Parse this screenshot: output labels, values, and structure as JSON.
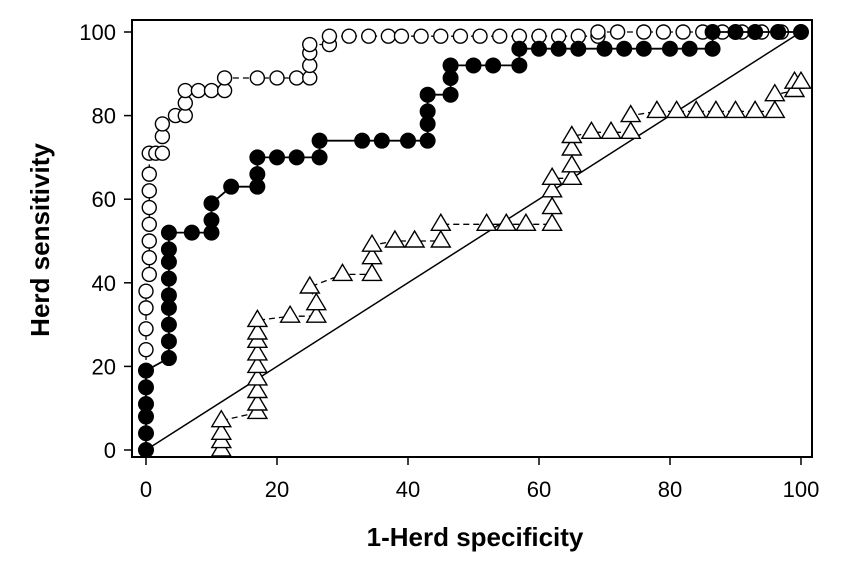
{
  "chart_data": {
    "type": "scatter",
    "title": "",
    "xlabel": "1-Herd specificity",
    "ylabel": "Herd sensitivity",
    "xlim": [
      0,
      100
    ],
    "ylim": [
      0,
      100
    ],
    "xticks": [
      0,
      20,
      40,
      60,
      80,
      100
    ],
    "yticks": [
      0,
      20,
      40,
      60,
      80,
      100
    ],
    "grid": false,
    "reference_line": {
      "x": [
        0,
        100
      ],
      "y": [
        0,
        100
      ]
    },
    "series": [
      {
        "marker": "open-circle",
        "line": "dashed",
        "points": [
          [
            0,
            0
          ],
          [
            0,
            19
          ],
          [
            0,
            24
          ],
          [
            0,
            29
          ],
          [
            0,
            34
          ],
          [
            0,
            38
          ],
          [
            0.5,
            42
          ],
          [
            0.5,
            46
          ],
          [
            0.5,
            50
          ],
          [
            0.5,
            54
          ],
          [
            0.5,
            58
          ],
          [
            0.5,
            62
          ],
          [
            0.5,
            66
          ],
          [
            0.5,
            71
          ],
          [
            1.5,
            71
          ],
          [
            2.5,
            71
          ],
          [
            2.5,
            75
          ],
          [
            2.5,
            78
          ],
          [
            4.5,
            80
          ],
          [
            6,
            80
          ],
          [
            6,
            83
          ],
          [
            6,
            86
          ],
          [
            8,
            86
          ],
          [
            10,
            86
          ],
          [
            12,
            86
          ],
          [
            12,
            89
          ],
          [
            17,
            89
          ],
          [
            20,
            89
          ],
          [
            23,
            89
          ],
          [
            25,
            89
          ],
          [
            25,
            92
          ],
          [
            25,
            95
          ],
          [
            25,
            97
          ],
          [
            28,
            97
          ],
          [
            28,
            99
          ],
          [
            31,
            99
          ],
          [
            34,
            99
          ],
          [
            37,
            99
          ],
          [
            39,
            99
          ],
          [
            42,
            99
          ],
          [
            45,
            99
          ],
          [
            48,
            99
          ],
          [
            51,
            99
          ],
          [
            54,
            99
          ],
          [
            57,
            99
          ],
          [
            60,
            99
          ],
          [
            63,
            99
          ],
          [
            66,
            99
          ],
          [
            69,
            99
          ],
          [
            69,
            100
          ],
          [
            72,
            100
          ],
          [
            76,
            100
          ],
          [
            79,
            100
          ],
          [
            82,
            100
          ],
          [
            85,
            100
          ],
          [
            88,
            100
          ],
          [
            91,
            100
          ],
          [
            94,
            100
          ],
          [
            97,
            100
          ],
          [
            100,
            100
          ]
        ]
      },
      {
        "marker": "filled-circle",
        "line": "solid",
        "points": [
          [
            0,
            0
          ],
          [
            0,
            4
          ],
          [
            0,
            8
          ],
          [
            0,
            11
          ],
          [
            0,
            15
          ],
          [
            0,
            19
          ],
          [
            3.5,
            22
          ],
          [
            3.5,
            26
          ],
          [
            3.5,
            30
          ],
          [
            3.5,
            34
          ],
          [
            3.5,
            37
          ],
          [
            3.5,
            41
          ],
          [
            3.5,
            45
          ],
          [
            3.5,
            48
          ],
          [
            3.5,
            52
          ],
          [
            7,
            52
          ],
          [
            10,
            52
          ],
          [
            10,
            55
          ],
          [
            10,
            59
          ],
          [
            13,
            63
          ],
          [
            17,
            63
          ],
          [
            17,
            66
          ],
          [
            17,
            70
          ],
          [
            20,
            70
          ],
          [
            23,
            70
          ],
          [
            26.5,
            70
          ],
          [
            26.5,
            74
          ],
          [
            33,
            74
          ],
          [
            36,
            74
          ],
          [
            40,
            74
          ],
          [
            43,
            74
          ],
          [
            43,
            78
          ],
          [
            43,
            81
          ],
          [
            43,
            85
          ],
          [
            46.5,
            85
          ],
          [
            46.5,
            89
          ],
          [
            46.5,
            92
          ],
          [
            50,
            92
          ],
          [
            53,
            92
          ],
          [
            57,
            92
          ],
          [
            57,
            96
          ],
          [
            60,
            96
          ],
          [
            63,
            96
          ],
          [
            66,
            96
          ],
          [
            70,
            96
          ],
          [
            73,
            96
          ],
          [
            76,
            96
          ],
          [
            80,
            96
          ],
          [
            83,
            96
          ],
          [
            86.5,
            96
          ],
          [
            86.5,
            100
          ],
          [
            90,
            100
          ],
          [
            93,
            100
          ],
          [
            96.5,
            100
          ],
          [
            100,
            100
          ]
        ]
      },
      {
        "marker": "open-triangle",
        "line": "dashed",
        "points": [
          [
            11.5,
            0
          ],
          [
            11.5,
            2
          ],
          [
            11.5,
            4
          ],
          [
            11.5,
            7
          ],
          [
            17,
            9
          ],
          [
            17,
            11
          ],
          [
            17,
            14
          ],
          [
            17,
            17
          ],
          [
            17,
            20
          ],
          [
            17,
            23
          ],
          [
            17,
            26
          ],
          [
            17,
            28
          ],
          [
            17,
            31
          ],
          [
            22,
            32
          ],
          [
            26,
            32
          ],
          [
            26,
            35
          ],
          [
            25,
            39
          ],
          [
            30,
            42
          ],
          [
            34.5,
            42
          ],
          [
            34.5,
            46
          ],
          [
            34.5,
            49
          ],
          [
            38,
            50
          ],
          [
            41,
            50
          ],
          [
            45,
            50
          ],
          [
            45,
            54
          ],
          [
            52,
            54
          ],
          [
            55,
            54
          ],
          [
            58,
            54
          ],
          [
            62,
            54
          ],
          [
            62,
            58
          ],
          [
            62,
            62
          ],
          [
            62,
            65
          ],
          [
            65,
            65
          ],
          [
            65,
            68
          ],
          [
            65,
            72
          ],
          [
            65,
            75
          ],
          [
            68,
            76
          ],
          [
            71,
            76
          ],
          [
            74,
            76
          ],
          [
            74,
            80
          ],
          [
            78,
            81
          ],
          [
            81,
            81
          ],
          [
            84,
            81
          ],
          [
            87,
            81
          ],
          [
            90,
            81
          ],
          [
            93,
            81
          ],
          [
            96,
            81
          ],
          [
            96,
            85
          ],
          [
            99,
            86
          ],
          [
            99,
            88
          ],
          [
            100,
            88
          ]
        ]
      }
    ]
  }
}
